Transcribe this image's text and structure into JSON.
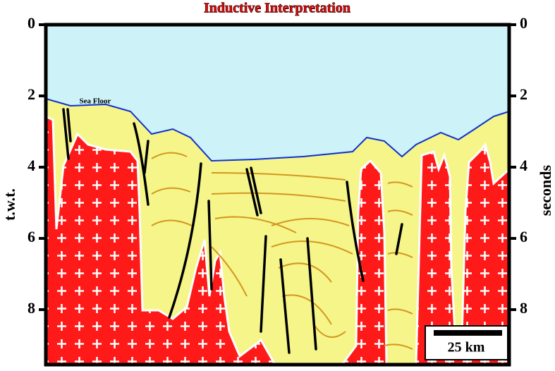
{
  "title": "Inductive Interpretation",
  "left_axis": {
    "label": "t.w.t.",
    "ticks": [
      0,
      2,
      4,
      6,
      8
    ]
  },
  "right_axis": {
    "label": "seconds",
    "ticks": [
      0,
      2,
      4,
      6,
      8
    ]
  },
  "annotations": {
    "sea_floor": "Sea Floor",
    "scale_bar": "25 km"
  }
}
